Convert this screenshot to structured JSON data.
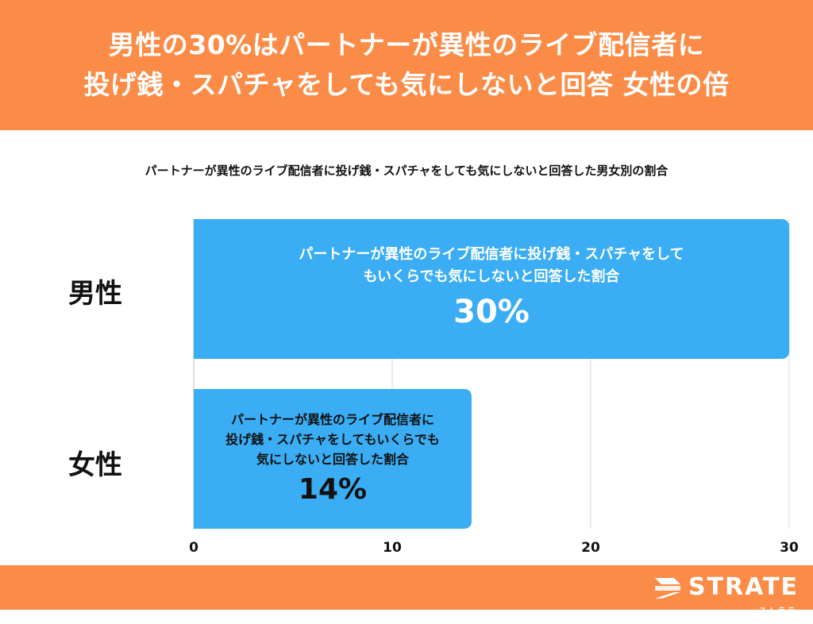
{
  "header": {
    "title_line1": "男性の30%はパートナーが異性のライブ配信者に",
    "title_line2": "投げ銭・スパチャをしても気にしないと回答 女性の倍"
  },
  "chart_data": {
    "type": "bar",
    "orientation": "horizontal",
    "title": "パートナーが異性のライブ配信者に投げ銭・スパチャをしても気にしないと回答した男女別の割合",
    "categories": [
      "男性",
      "女性"
    ],
    "values": [
      30,
      14
    ],
    "bar_labels": [
      {
        "lines": [
          "パートナーが異性のライブ配信者に投げ銭・スパチャをして",
          "もいくらでも気にしないと回答した割合"
        ],
        "value": "30%"
      },
      {
        "lines": [
          "パートナーが異性のライブ配信者に",
          "投げ銭・スパチャをしてもいくらでも",
          "気にしないと回答した割合"
        ],
        "value": "14%"
      }
    ],
    "xlim": [
      0,
      30
    ],
    "xticks": [
      "0",
      "10",
      "20",
      "30"
    ],
    "grid": true,
    "bar_color": "#3badf4"
  },
  "colors": {
    "accent": "#fb8c47",
    "bar": "#3badf4",
    "grid": "#d9d9d9"
  },
  "footer": {
    "brand": "STRATE",
    "brand_kana": "ストラテ",
    "logo_icon": "strate-logo-icon"
  }
}
